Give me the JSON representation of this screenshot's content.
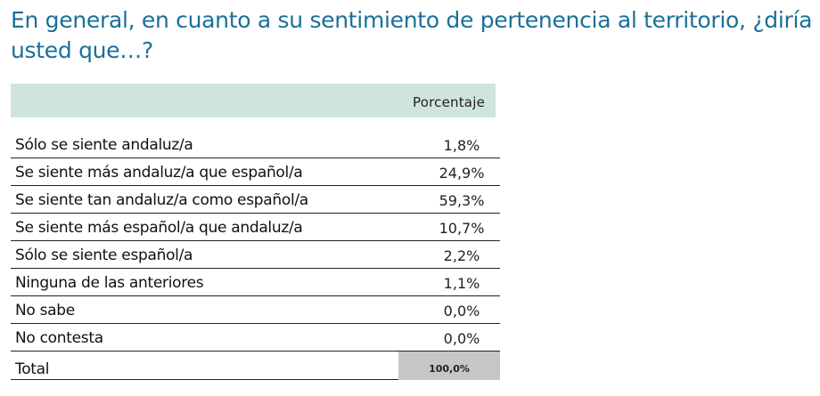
{
  "question": "En general, en cuanto a su sentimiento de pertenencia al territorio, ¿diría usted que…?",
  "table": {
    "column_header": "Porcentaje",
    "rows": [
      {
        "label": "Sólo se siente andaluz/a",
        "value": "1,8%"
      },
      {
        "label": "Se siente más andaluz/a que español/a",
        "value": "24,9%"
      },
      {
        "label": "Se siente tan andaluz/a como español/a",
        "value": "59,3%"
      },
      {
        "label": "Se siente más español/a que andaluz/a",
        "value": "10,7%"
      },
      {
        "label": "Sólo se siente español/a",
        "value": "2,2%"
      },
      {
        "label": "Ninguna de las anteriores",
        "value": "1,1%"
      },
      {
        "label": "No sabe",
        "value": "0,0%"
      },
      {
        "label": "No contesta",
        "value": "0,0%"
      }
    ],
    "total": {
      "label": "Total",
      "value": "100,0%"
    }
  },
  "colors": {
    "title": "#1b6f99",
    "header_bg": "#cfe4dd",
    "total_bg": "#c6c6c6"
  }
}
